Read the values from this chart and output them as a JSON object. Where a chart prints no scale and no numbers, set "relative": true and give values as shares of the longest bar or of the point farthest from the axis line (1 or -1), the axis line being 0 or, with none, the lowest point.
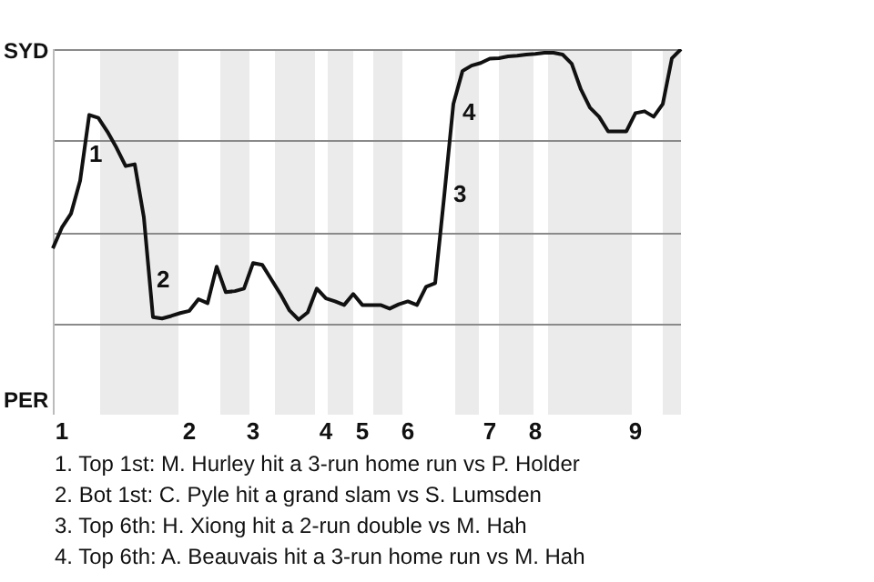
{
  "chart_data": {
    "type": "line",
    "categories": [
      null,
      "1",
      null,
      null,
      null,
      null,
      null,
      null,
      null,
      null,
      null,
      null,
      null,
      null,
      null,
      "2",
      null,
      null,
      null,
      null,
      null,
      null,
      "3",
      null,
      null,
      null,
      null,
      null,
      null,
      null,
      "4",
      null,
      null,
      null,
      "5",
      null,
      null,
      null,
      null,
      "6",
      null,
      null,
      null,
      null,
      null,
      null,
      null,
      null,
      "7",
      null,
      null,
      null,
      null,
      "8",
      null,
      null,
      null,
      null,
      null,
      null,
      null,
      null,
      null,
      null,
      "9",
      null,
      null,
      null,
      null,
      null
    ],
    "series": [
      {
        "color": "#111111",
        "values": [
          0.455,
          0.512,
          0.55,
          0.64,
          0.82,
          0.812,
          0.774,
          0.73,
          0.68,
          0.685,
          0.54,
          0.267,
          0.263,
          0.27,
          0.278,
          0.284,
          0.316,
          0.305,
          0.405,
          0.335,
          0.338,
          0.345,
          0.415,
          0.41,
          0.37,
          0.33,
          0.285,
          0.26,
          0.28,
          0.345,
          0.318,
          0.31,
          0.3,
          0.33,
          0.3,
          0.3,
          0.3,
          0.29,
          0.302,
          0.31,
          0.3,
          0.35,
          0.36,
          0.6,
          0.85,
          0.94,
          0.955,
          0.962,
          0.974,
          0.975,
          0.98,
          0.982,
          0.985,
          0.987,
          0.99,
          0.99,
          0.985,
          0.96,
          0.89,
          0.84,
          0.815,
          0.775,
          0.775,
          0.775,
          0.825,
          0.83,
          0.815,
          0.85,
          0.975,
          1.0
        ]
      }
    ],
    "relative": true,
    "grid": "y",
    "legend": false,
    "marker": "none",
    "line_style": "solid",
    "annotations": [
      "SYD",
      "PER",
      "1",
      "2",
      "3",
      "4",
      "1. Top 1st: M. Hurley hit a 3-run home run vs P. Holder",
      "2. Bot 1st: C. Pyle hit a grand slam vs S. Lumsden",
      "3. Top 6th: H. Xiong hit a 2-run double vs M. Hah",
      "4. Top 6th: A. Beauvais hit a 3-run home run vs M. Hah"
    ]
  }
}
